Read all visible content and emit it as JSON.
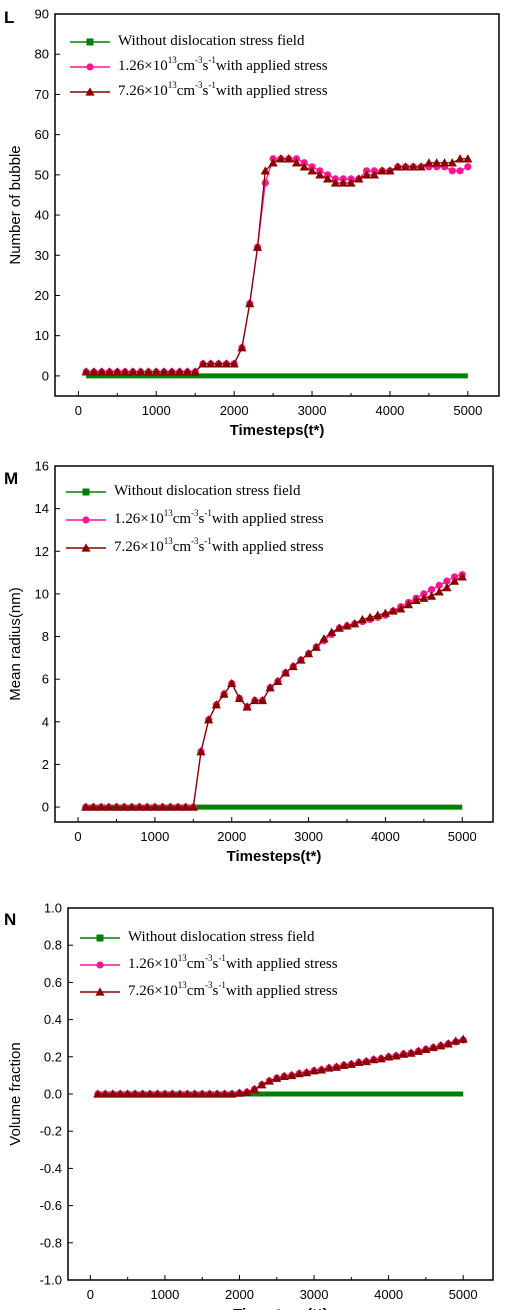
{
  "colors": {
    "series_0": "#008000",
    "series_1": "#ff1493",
    "series_2": "#8b0000",
    "axis": "#000000"
  },
  "chart_data": [
    {
      "type": "line",
      "panel_label": "L",
      "xlabel": "Timesteps(t*)",
      "ylabel": "Number of bubble",
      "xlim": [
        -300,
        5400
      ],
      "ylim": [
        -5,
        90
      ],
      "xticks": [
        0,
        1000,
        2000,
        3000,
        4000,
        5000
      ],
      "yticks": [
        0,
        10,
        20,
        30,
        40,
        50,
        60,
        70,
        80,
        90
      ],
      "legend_position": "top-left",
      "series": [
        {
          "legend_main": "Without dislocation stress field",
          "legend_mantissa": "",
          "legend_exp1": "",
          "legend_unit1": "",
          "legend_exp2": "",
          "legend_unit2": "",
          "legend_exp3": "",
          "legend_tail": "",
          "marker": "square",
          "x": [
            100,
            1550,
            1600,
            5000
          ],
          "y": [
            0,
            0,
            0,
            0
          ]
        },
        {
          "legend_main": "",
          "legend_mantissa": "1.26×10",
          "legend_exp1": "13",
          "legend_unit1": "cm",
          "legend_exp2": "-3",
          "legend_unit2": "s",
          "legend_exp3": "-1",
          "legend_tail": "with applied stress",
          "marker": "circle",
          "x": [
            100,
            200,
            300,
            400,
            500,
            600,
            700,
            800,
            900,
            1000,
            1100,
            1200,
            1300,
            1400,
            1500,
            1600,
            1700,
            1800,
            1900,
            2000,
            2100,
            2200,
            2300,
            2400,
            2500,
            2600,
            2700,
            2800,
            2900,
            3000,
            3100,
            3200,
            3300,
            3400,
            3500,
            3600,
            3700,
            3800,
            3900,
            4000,
            4100,
            4200,
            4300,
            4400,
            4500,
            4600,
            4700,
            4800,
            4900,
            5000
          ],
          "y": [
            1,
            1,
            1,
            1,
            1,
            1,
            1,
            1,
            1,
            1,
            1,
            1,
            1,
            1,
            1,
            3,
            3,
            3,
            3,
            3,
            7,
            18,
            32,
            48,
            54,
            54,
            54,
            54,
            53,
            52,
            51,
            50,
            49,
            49,
            49,
            49,
            51,
            51,
            51,
            51,
            52,
            52,
            52,
            52,
            52,
            52,
            52,
            51,
            51,
            52
          ]
        },
        {
          "legend_main": "",
          "legend_mantissa": "7.26×10",
          "legend_exp1": "13",
          "legend_unit1": "cm",
          "legend_exp2": "-3",
          "legend_unit2": "s",
          "legend_exp3": "-1",
          "legend_tail": "with applied stress",
          "marker": "triangle",
          "x": [
            100,
            200,
            300,
            400,
            500,
            600,
            700,
            800,
            900,
            1000,
            1100,
            1200,
            1300,
            1400,
            1500,
            1600,
            1700,
            1800,
            1900,
            2000,
            2100,
            2200,
            2300,
            2400,
            2500,
            2600,
            2700,
            2800,
            2900,
            3000,
            3100,
            3200,
            3300,
            3400,
            3500,
            3600,
            3700,
            3800,
            3900,
            4000,
            4100,
            4200,
            4300,
            4400,
            4500,
            4600,
            4700,
            4800,
            4900,
            5000
          ],
          "y": [
            1,
            1,
            1,
            1,
            1,
            1,
            1,
            1,
            1,
            1,
            1,
            1,
            1,
            1,
            1,
            3,
            3,
            3,
            3,
            3,
            7,
            18,
            32,
            51,
            53,
            54,
            54,
            53,
            52,
            51,
            50,
            49,
            48,
            48,
            48,
            49,
            50,
            50,
            51,
            51,
            52,
            52,
            52,
            52,
            53,
            53,
            53,
            53,
            54,
            54
          ]
        }
      ]
    },
    {
      "type": "line",
      "panel_label": "M",
      "xlabel": "Timesteps(t*)",
      "ylabel": "Mean radius(nm)",
      "xlim": [
        -300,
        5400
      ],
      "ylim": [
        -0.7,
        16
      ],
      "xticks": [
        0,
        1000,
        2000,
        3000,
        4000,
        5000
      ],
      "yticks": [
        0,
        2,
        4,
        6,
        8,
        10,
        12,
        14,
        16
      ],
      "legend_position": "top-left",
      "series": [
        {
          "legend_main": "Without dislocation stress field",
          "legend_mantissa": "",
          "legend_exp1": "",
          "legend_unit1": "",
          "legend_exp2": "",
          "legend_unit2": "",
          "legend_exp3": "",
          "legend_tail": "",
          "marker": "square",
          "x": [
            100,
            1550,
            1600,
            5000
          ],
          "y": [
            0,
            0,
            0,
            0
          ]
        },
        {
          "legend_main": "",
          "legend_mantissa": "1.26×10",
          "legend_exp1": "13",
          "legend_unit1": "cm",
          "legend_exp2": "-3",
          "legend_unit2": "s",
          "legend_exp3": "-1",
          "legend_tail": "with applied stress",
          "marker": "circle",
          "x": [
            100,
            200,
            300,
            400,
            500,
            600,
            700,
            800,
            900,
            1000,
            1100,
            1200,
            1300,
            1400,
            1500,
            1600,
            1700,
            1800,
            1900,
            2000,
            2100,
            2200,
            2300,
            2400,
            2500,
            2600,
            2700,
            2800,
            2900,
            3000,
            3100,
            3200,
            3300,
            3400,
            3500,
            3600,
            3700,
            3800,
            3900,
            4000,
            4100,
            4200,
            4300,
            4400,
            4500,
            4600,
            4700,
            4800,
            4900,
            5000
          ],
          "y": [
            0,
            0,
            0,
            0,
            0,
            0,
            0,
            0,
            0,
            0,
            0,
            0,
            0,
            0,
            0,
            2.6,
            4.1,
            4.8,
            5.3,
            5.8,
            5.1,
            4.7,
            5.0,
            5.0,
            5.6,
            5.9,
            6.3,
            6.6,
            6.9,
            7.2,
            7.5,
            7.8,
            8.1,
            8.4,
            8.5,
            8.6,
            8.7,
            8.8,
            8.9,
            9.0,
            9.2,
            9.4,
            9.6,
            9.8,
            10.0,
            10.2,
            10.4,
            10.6,
            10.8,
            10.9
          ]
        },
        {
          "legend_main": "",
          "legend_mantissa": "7.26×10",
          "legend_exp1": "13",
          "legend_unit1": "cm",
          "legend_exp2": "-3",
          "legend_unit2": "s",
          "legend_exp3": "-1",
          "legend_tail": "with applied stress",
          "marker": "triangle",
          "x": [
            100,
            200,
            300,
            400,
            500,
            600,
            700,
            800,
            900,
            1000,
            1100,
            1200,
            1300,
            1400,
            1500,
            1600,
            1700,
            1800,
            1900,
            2000,
            2100,
            2200,
            2300,
            2400,
            2500,
            2600,
            2700,
            2800,
            2900,
            3000,
            3100,
            3200,
            3300,
            3400,
            3500,
            3600,
            3700,
            3800,
            3900,
            4000,
            4100,
            4200,
            4300,
            4400,
            4500,
            4600,
            4700,
            4800,
            4900,
            5000
          ],
          "y": [
            0,
            0,
            0,
            0,
            0,
            0,
            0,
            0,
            0,
            0,
            0,
            0,
            0,
            0,
            0,
            2.6,
            4.1,
            4.8,
            5.3,
            5.8,
            5.1,
            4.7,
            5.0,
            5.0,
            5.6,
            5.9,
            6.3,
            6.6,
            6.9,
            7.2,
            7.5,
            7.9,
            8.2,
            8.4,
            8.5,
            8.6,
            8.8,
            8.9,
            9.0,
            9.1,
            9.2,
            9.3,
            9.5,
            9.7,
            9.8,
            9.9,
            10.1,
            10.3,
            10.6,
            10.8
          ]
        }
      ]
    },
    {
      "type": "line",
      "panel_label": "N",
      "xlabel": "Timesteps(t*)",
      "ylabel": "Volume fraction",
      "xlim": [
        -300,
        5400
      ],
      "ylim": [
        -1.0,
        1.0
      ],
      "xticks": [
        0,
        1000,
        2000,
        3000,
        4000,
        5000
      ],
      "yticks": [
        -1.0,
        -0.8,
        -0.6,
        -0.4,
        -0.2,
        0.0,
        0.2,
        0.4,
        0.6,
        0.8,
        1.0
      ],
      "ytick_labels": [
        "-1.0",
        "-0.8",
        "-0.6",
        "-0.4",
        "-0.2",
        "0.0",
        "0.2",
        "0.4",
        "0.6",
        "0.8",
        "1.0"
      ],
      "legend_position": "top-left",
      "series": [
        {
          "legend_main": "Without dislocation stress field",
          "legend_mantissa": "",
          "legend_exp1": "",
          "legend_unit1": "",
          "legend_exp2": "",
          "legend_unit2": "",
          "legend_exp3": "",
          "legend_tail": "",
          "marker": "square",
          "x": [
            100,
            2100,
            2150,
            5000
          ],
          "y": [
            0,
            0,
            0,
            0
          ]
        },
        {
          "legend_main": "",
          "legend_mantissa": "1.26×10",
          "legend_exp1": "13",
          "legend_unit1": "cm",
          "legend_exp2": "-3",
          "legend_unit2": "s",
          "legend_exp3": "-1",
          "legend_tail": "with applied stress",
          "marker": "circle",
          "x": [
            100,
            200,
            300,
            400,
            500,
            600,
            700,
            800,
            900,
            1000,
            1100,
            1200,
            1300,
            1400,
            1500,
            1600,
            1700,
            1800,
            1900,
            2000,
            2100,
            2200,
            2300,
            2400,
            2500,
            2600,
            2700,
            2800,
            2900,
            3000,
            3100,
            3200,
            3300,
            3400,
            3500,
            3600,
            3700,
            3800,
            3900,
            4000,
            4100,
            4200,
            4300,
            4400,
            4500,
            4600,
            4700,
            4800,
            4900,
            5000
          ],
          "y": [
            0,
            0,
            0,
            0,
            0,
            0,
            0,
            0,
            0,
            0,
            0,
            0,
            0,
            0,
            0,
            0,
            0,
            0,
            0,
            0.005,
            0.01,
            0.025,
            0.05,
            0.07,
            0.085,
            0.095,
            0.1,
            0.11,
            0.115,
            0.125,
            0.13,
            0.14,
            0.145,
            0.155,
            0.16,
            0.17,
            0.175,
            0.185,
            0.19,
            0.2,
            0.205,
            0.215,
            0.22,
            0.23,
            0.24,
            0.25,
            0.26,
            0.27,
            0.28,
            0.29
          ]
        },
        {
          "legend_main": "",
          "legend_mantissa": "7.26×10",
          "legend_exp1": "13",
          "legend_unit1": "cm",
          "legend_exp2": "-3",
          "legend_unit2": "s",
          "legend_exp3": "-1",
          "legend_tail": "with applied stress",
          "marker": "triangle",
          "x": [
            100,
            200,
            300,
            400,
            500,
            600,
            700,
            800,
            900,
            1000,
            1100,
            1200,
            1300,
            1400,
            1500,
            1600,
            1700,
            1800,
            1900,
            2000,
            2100,
            2200,
            2300,
            2400,
            2500,
            2600,
            2700,
            2800,
            2900,
            3000,
            3100,
            3200,
            3300,
            3400,
            3500,
            3600,
            3700,
            3800,
            3900,
            4000,
            4100,
            4200,
            4300,
            4400,
            4500,
            4600,
            4700,
            4800,
            4900,
            5000
          ],
          "y": [
            0,
            0,
            0,
            0,
            0,
            0,
            0,
            0,
            0,
            0,
            0,
            0,
            0,
            0,
            0,
            0,
            0,
            0,
            0,
            0.005,
            0.01,
            0.025,
            0.05,
            0.07,
            0.085,
            0.095,
            0.1,
            0.11,
            0.115,
            0.125,
            0.13,
            0.14,
            0.145,
            0.155,
            0.16,
            0.17,
            0.175,
            0.185,
            0.19,
            0.2,
            0.205,
            0.215,
            0.22,
            0.23,
            0.24,
            0.25,
            0.26,
            0.27,
            0.285,
            0.295
          ]
        }
      ]
    }
  ]
}
